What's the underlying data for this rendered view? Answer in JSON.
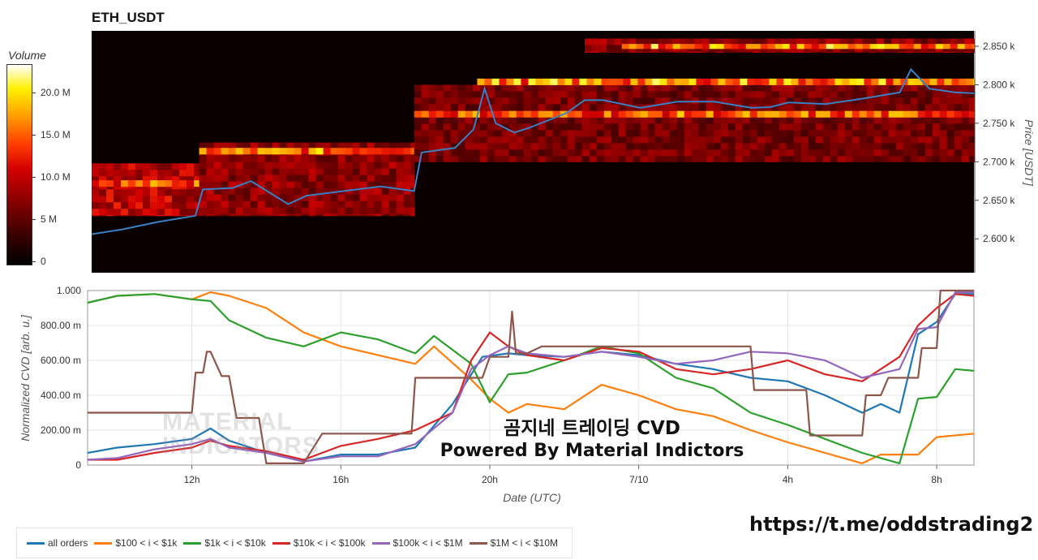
{
  "title": "ETH_USDT",
  "watermark": "MATERIAL\nINDICATORS",
  "overlay_line1": "곰지네 트레이딩 CVD",
  "overlay_line2": "Powered By Material Indictors",
  "link": "https://t.me/oddstrading2",
  "colorbar": {
    "title": "Volume",
    "ticks": [
      "20.0 M",
      "15.0 M",
      "10.0 M",
      "5 M",
      "0"
    ]
  },
  "chart_data": [
    {
      "type": "heatmap",
      "title": "ETH_USDT",
      "ylabel": "Price [USDT]",
      "ylim": [
        2556,
        2870
      ],
      "yticks": [
        "2.850 k",
        "2.800 k",
        "2.750 k",
        "2.700 k",
        "2.650 k",
        "2.600 k"
      ],
      "ytick_values": [
        2850,
        2800,
        2750,
        2700,
        2650,
        2600
      ],
      "xlim": [
        9.2,
        33
      ],
      "colorscale": [
        "#000000",
        "#3a0000",
        "#8a0000",
        "#d40000",
        "#ff3b00",
        "#ff9a00",
        "#fff000",
        "#ffffff"
      ],
      "price_line": {
        "color": "#3b7fc4",
        "x": [
          9.2,
          10,
          11,
          12,
          12.2,
          13,
          13.5,
          14.5,
          15,
          16,
          17,
          17.9,
          18.1,
          19,
          19.5,
          19.8,
          20.1,
          20.6,
          21,
          22,
          22.5,
          23,
          24,
          25,
          26,
          27,
          27.5,
          28,
          29,
          30,
          31,
          31.3,
          31.8,
          32.5,
          33
        ],
        "y": [
          2606,
          2612,
          2622,
          2630,
          2664,
          2666,
          2675,
          2645,
          2656,
          2662,
          2668,
          2662,
          2712,
          2718,
          2742,
          2795,
          2750,
          2738,
          2744,
          2763,
          2780,
          2780,
          2770,
          2778,
          2778,
          2770,
          2771,
          2777,
          2775,
          2782,
          2790,
          2820,
          2795,
          2790,
          2789
        ]
      },
      "bands": [
        {
          "x": [
            9.2,
            12.1
          ],
          "y": [
            2630,
            2698
          ],
          "level": 0.45
        },
        {
          "x": [
            9.2,
            12.1
          ],
          "y": [
            2668,
            2676
          ],
          "level": 0.7
        },
        {
          "x": [
            12.1,
            17.9
          ],
          "y": [
            2630,
            2725
          ],
          "level": 0.35
        },
        {
          "x": [
            12.1,
            17.9
          ],
          "y": [
            2710,
            2718
          ],
          "level": 0.75
        },
        {
          "x": [
            17.9,
            33
          ],
          "y": [
            2700,
            2800
          ],
          "level": 0.3
        },
        {
          "x": [
            17.9,
            33
          ],
          "y": [
            2758,
            2766
          ],
          "level": 0.7
        },
        {
          "x": [
            19.6,
            33
          ],
          "y": [
            2800,
            2808
          ],
          "level": 0.8
        },
        {
          "x": [
            22.5,
            33
          ],
          "y": [
            2842,
            2860
          ],
          "level": 0.35
        },
        {
          "x": [
            23.5,
            33
          ],
          "y": [
            2847,
            2853
          ],
          "level": 0.8
        }
      ]
    },
    {
      "type": "line",
      "xlabel": "Date (UTC)",
      "ylabel": "Normalized CVD [arb. u.]",
      "ylim": [
        0,
        1
      ],
      "xlim": [
        9.2,
        33
      ],
      "yticks": [
        "1.000",
        "800.00 m",
        "600.00 m",
        "400.00 m",
        "200.00 m",
        "0"
      ],
      "ytick_values": [
        1,
        0.8,
        0.6,
        0.4,
        0.2,
        0
      ],
      "xticks": [
        "12h",
        "16h",
        "20h",
        "7/10",
        "4h",
        "8h"
      ],
      "xtick_values": [
        12,
        16,
        20,
        24,
        28,
        32
      ],
      "series": [
        {
          "name": "all orders",
          "color": "#1f77b4",
          "x": [
            9.2,
            10,
            11,
            12,
            12.5,
            13,
            14,
            15,
            16,
            17,
            18,
            19,
            19.8,
            20.5,
            21,
            22,
            23,
            24,
            25,
            26,
            27,
            28,
            29,
            30,
            30.5,
            31,
            31.5,
            32,
            32.5,
            33
          ],
          "y": [
            0.07,
            0.1,
            0.12,
            0.15,
            0.21,
            0.14,
            0.07,
            0.02,
            0.06,
            0.06,
            0.1,
            0.35,
            0.62,
            0.64,
            0.63,
            0.62,
            0.65,
            0.63,
            0.58,
            0.55,
            0.5,
            0.48,
            0.4,
            0.3,
            0.35,
            0.3,
            0.75,
            0.82,
            0.98,
            0.98
          ]
        },
        {
          "name": "$100 < i < $1k",
          "color": "#ff7f0e",
          "x": [
            9.2,
            10,
            11,
            12,
            12.5,
            13,
            14,
            15,
            16,
            17,
            18,
            18.5,
            19.5,
            20,
            20.5,
            21,
            22,
            23,
            24,
            25,
            26,
            27,
            28,
            29,
            30,
            30.5,
            31.5,
            32,
            33
          ],
          "y": [
            0.93,
            0.97,
            0.98,
            0.95,
            0.99,
            0.97,
            0.9,
            0.76,
            0.68,
            0.63,
            0.58,
            0.68,
            0.49,
            0.38,
            0.3,
            0.35,
            0.32,
            0.46,
            0.4,
            0.32,
            0.28,
            0.2,
            0.13,
            0.07,
            0.01,
            0.06,
            0.06,
            0.16,
            0.18
          ]
        },
        {
          "name": "$1k < i < $10k",
          "color": "#2ca02c",
          "x": [
            9.2,
            10,
            11,
            12,
            12.5,
            13,
            14,
            15,
            16,
            17,
            18,
            18.5,
            19.5,
            20,
            20.5,
            21,
            22,
            23,
            24,
            25,
            26,
            27,
            28,
            29,
            30,
            31,
            31.5,
            32,
            32.5,
            33
          ],
          "y": [
            0.93,
            0.97,
            0.98,
            0.95,
            0.94,
            0.83,
            0.73,
            0.68,
            0.76,
            0.72,
            0.64,
            0.74,
            0.58,
            0.36,
            0.52,
            0.53,
            0.6,
            0.68,
            0.64,
            0.5,
            0.44,
            0.3,
            0.23,
            0.15,
            0.07,
            0.01,
            0.38,
            0.39,
            0.55,
            0.54
          ]
        },
        {
          "name": "$10k < i < $100k",
          "color": "#d62728",
          "x": [
            9.2,
            10,
            11,
            12,
            12.5,
            13,
            14,
            15,
            16,
            17,
            18,
            19,
            19.5,
            20,
            20.5,
            21,
            22,
            23,
            24,
            25,
            26,
            27,
            28,
            29,
            30,
            31,
            31.5,
            32,
            32.5,
            33
          ],
          "y": [
            0.03,
            0.03,
            0.07,
            0.1,
            0.14,
            0.11,
            0.08,
            0.03,
            0.11,
            0.15,
            0.2,
            0.3,
            0.6,
            0.76,
            0.68,
            0.63,
            0.6,
            0.67,
            0.65,
            0.55,
            0.52,
            0.55,
            0.6,
            0.52,
            0.48,
            0.62,
            0.8,
            0.9,
            0.98,
            0.97
          ]
        },
        {
          "name": "$100k < i < $1M",
          "color": "#9467bd",
          "x": [
            9.2,
            10,
            11,
            12,
            12.5,
            13,
            14,
            15,
            16,
            17,
            18,
            19,
            19.5,
            20,
            20.5,
            21,
            22,
            23,
            24,
            25,
            26,
            27,
            28,
            29,
            30,
            31,
            31.5,
            32,
            32.5,
            33
          ],
          "y": [
            0.03,
            0.04,
            0.09,
            0.12,
            0.15,
            0.1,
            0.07,
            0.02,
            0.05,
            0.05,
            0.12,
            0.3,
            0.55,
            0.63,
            0.68,
            0.64,
            0.62,
            0.65,
            0.62,
            0.58,
            0.6,
            0.65,
            0.64,
            0.6,
            0.5,
            0.55,
            0.78,
            0.79,
            0.99,
            0.99
          ]
        },
        {
          "name": "$1M < i < $10M",
          "color": "#8c564b",
          "x": [
            9.2,
            12,
            12.1,
            12.3,
            12.4,
            12.5,
            12.8,
            13,
            13.2,
            13.8,
            14,
            15,
            15.5,
            17,
            17.9,
            18,
            19.8,
            20,
            20.5,
            20.6,
            20.7,
            21,
            21.4,
            23,
            24,
            27,
            27.1,
            28,
            28.5,
            28.6,
            30,
            30.1,
            30.5,
            30.7,
            31.5,
            31.6,
            32,
            32.1,
            33
          ],
          "y": [
            0.3,
            0.3,
            0.53,
            0.53,
            0.65,
            0.65,
            0.51,
            0.51,
            0.27,
            0.27,
            0.01,
            0.01,
            0.18,
            0.18,
            0.18,
            0.5,
            0.5,
            0.62,
            0.62,
            0.88,
            0.64,
            0.64,
            0.68,
            0.68,
            0.68,
            0.68,
            0.43,
            0.43,
            0.43,
            0.17,
            0.17,
            0.4,
            0.4,
            0.5,
            0.5,
            0.67,
            0.67,
            1.0,
            1.0
          ]
        }
      ]
    }
  ]
}
